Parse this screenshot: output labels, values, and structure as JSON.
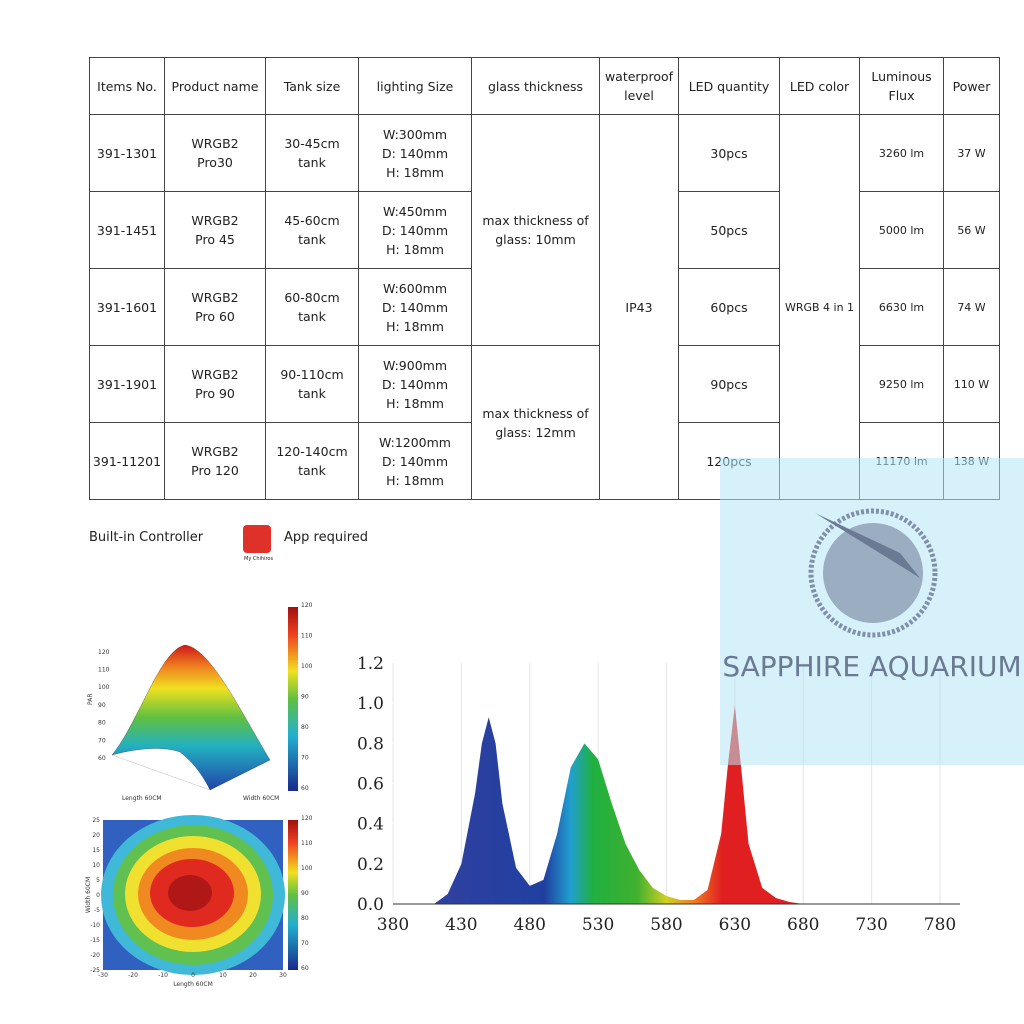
{
  "table": {
    "headers": [
      "Items No.",
      "Product name",
      "Tank size",
      "lighting Size",
      "glass thickness",
      "waterproof level",
      "LED quantity",
      "LED color",
      "Luminous Flux",
      "Power"
    ],
    "rows": [
      {
        "item": "391-1301",
        "name": "WRGB2\nPro30",
        "tank": "30-45cm\ntank",
        "size": "W:300mm\nD: 140mm\nH: 18mm",
        "leds": "30pcs",
        "flux": "3260 lm",
        "power": "37 W"
      },
      {
        "item": "391-1451",
        "name": "WRGB2\nPro 45",
        "tank": "45-60cm\ntank",
        "size": "W:450mm\nD: 140mm\nH: 18mm",
        "leds": "50pcs",
        "flux": "5000 lm",
        "power": "56 W"
      },
      {
        "item": "391-1601",
        "name": "WRGB2\nPro 60",
        "tank": "60-80cm\ntank",
        "size": "W:600mm\nD: 140mm\nH: 18mm",
        "leds": "60pcs",
        "flux": "6630 lm",
        "power": "74 W"
      },
      {
        "item": "391-1901",
        "name": "WRGB2\nPro 90",
        "tank": "90-110cm\ntank",
        "size": "W:900mm\nD: 140mm\nH: 18mm",
        "leds": "90pcs",
        "flux": "9250 lm",
        "power": "110 W"
      },
      {
        "item": "391-11201",
        "name": "WRGB2\nPro 120",
        "tank": "120-140cm\ntank",
        "size": "W:1200mm\nD: 140mm\nH: 18mm",
        "leds": "120pcs",
        "flux": "11170 lm",
        "power": "138 W"
      }
    ],
    "glass": [
      "max thickness of\nglass: 10mm",
      "max thickness of\nglass: 12mm"
    ],
    "waterproof": "IP43",
    "led_color": "WRGB 4 in 1"
  },
  "controller": "Built-in Controller",
  "app": "App required",
  "app_icon_label": "My Chihiros",
  "par_plot": {
    "zlabel": "PAR",
    "xlabel": "Length 60CM",
    "ylabel": "Width 60CM",
    "zticks": [
      60,
      70,
      80,
      90,
      100,
      110,
      120
    ],
    "colorbar_ticks": [
      60,
      70,
      80,
      90,
      100,
      110,
      120
    ]
  },
  "heatmap": {
    "xlabel": "Length 60CM",
    "ylabel": "Width 60CM",
    "xticks": [
      -30,
      -20,
      -10,
      0,
      10,
      20,
      30
    ],
    "yticks": [
      -25,
      -20,
      -15,
      -10,
      -5,
      0,
      5,
      10,
      15,
      20,
      25
    ],
    "colorbar_ticks": [
      60,
      70,
      80,
      90,
      100,
      110,
      120
    ]
  },
  "chart_data": {
    "type": "area",
    "x": [
      410,
      420,
      430,
      440,
      445,
      450,
      455,
      460,
      470,
      480,
      490,
      500,
      510,
      520,
      530,
      540,
      550,
      560,
      570,
      580,
      590,
      600,
      610,
      620,
      625,
      630,
      635,
      640,
      650,
      660,
      670,
      680
    ],
    "values": [
      0,
      0.05,
      0.2,
      0.55,
      0.8,
      0.93,
      0.8,
      0.5,
      0.18,
      0.09,
      0.12,
      0.35,
      0.68,
      0.8,
      0.72,
      0.5,
      0.3,
      0.17,
      0.08,
      0.04,
      0.02,
      0.02,
      0.07,
      0.35,
      0.7,
      0.99,
      0.65,
      0.3,
      0.08,
      0.03,
      0.01,
      0
    ],
    "xlim": [
      380,
      780
    ],
    "ylim": [
      0,
      1.2
    ],
    "xticks": [
      380,
      430,
      480,
      530,
      580,
      630,
      680,
      730,
      780
    ],
    "yticks": [
      {
        "value": 0,
        "label": "0.0"
      },
      {
        "value": 0.2,
        "label": "0.2"
      },
      {
        "value": 0.4,
        "label": "0.4"
      },
      {
        "value": 0.6,
        "label": "0.6"
      },
      {
        "value": 0.8,
        "label": "0.8"
      },
      {
        "value": 1,
        "label": "1.0"
      },
      {
        "value": 1.2,
        "label": "1.2"
      }
    ]
  },
  "watermark": "SAPPHIRE AQUARIUM"
}
